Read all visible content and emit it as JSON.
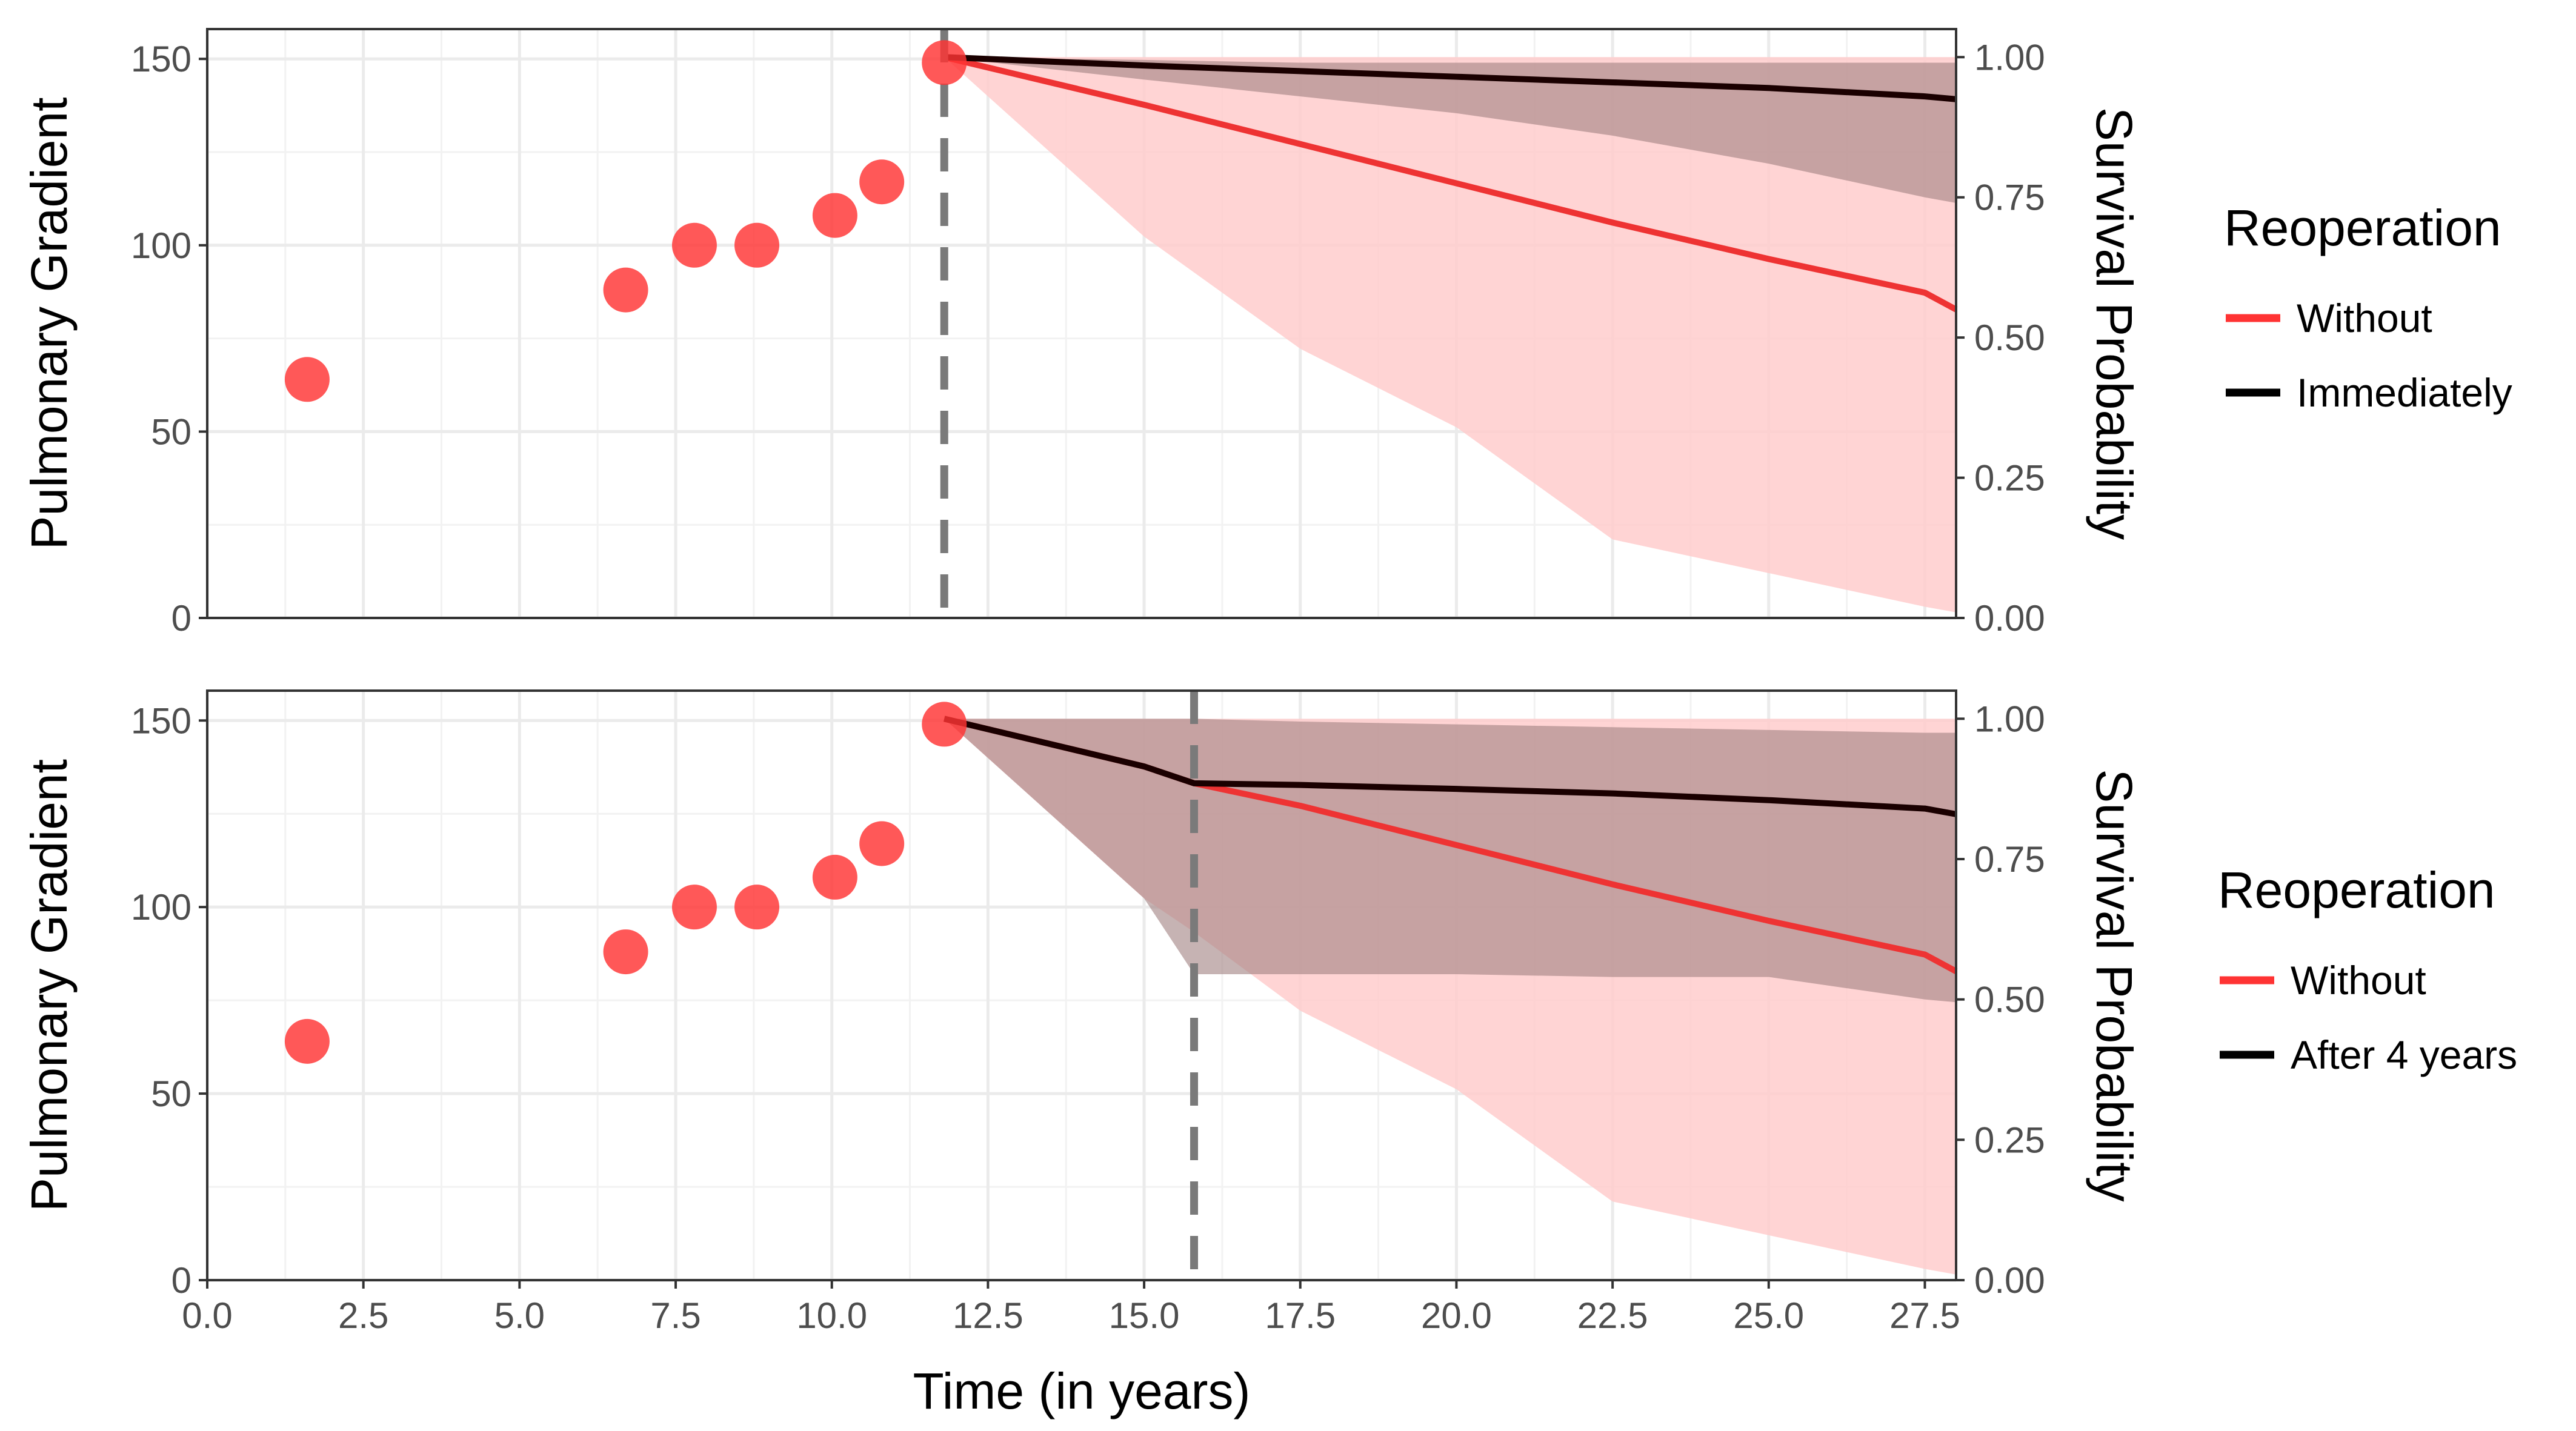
{
  "chart_data": [
    {
      "type": "line",
      "panel": "top",
      "xlim": [
        0,
        28
      ],
      "ylim_left": [
        0,
        158
      ],
      "ylim_right": [
        0,
        1.05
      ],
      "ylabel": "Pulmonary Gradient",
      "ylabel_right": "Survival Probability",
      "yticks_left": [
        "0",
        "50",
        "100",
        "150"
      ],
      "yticks_left_values": [
        0,
        50,
        100,
        150
      ],
      "yticks_right": [
        "0.00",
        "0.25",
        "0.50",
        "0.75",
        "1.00"
      ],
      "yticks_right_values": [
        0,
        0.25,
        0.5,
        0.75,
        1.0
      ],
      "vline_x": 11.8,
      "points": {
        "x": [
          1.6,
          6.7,
          7.8,
          8.8,
          10.05,
          10.8,
          11.8
        ],
        "y": [
          64,
          88,
          100,
          100,
          108,
          117,
          149
        ]
      },
      "series": [
        {
          "name": "Without",
          "color": "#ff3333",
          "x": [
            11.8,
            15,
            17.5,
            20,
            22.5,
            25,
            27.5,
            28
          ],
          "y": [
            1.0,
            0.915,
            0.845,
            0.775,
            0.705,
            0.64,
            0.58,
            0.55
          ],
          "band_lower": [
            1.0,
            0.68,
            0.48,
            0.34,
            0.14,
            0.08,
            0.02,
            0.01
          ],
          "band_upper": [
            1.0,
            1.0,
            1.0,
            1.0,
            1.0,
            1.0,
            1.0,
            1.0
          ],
          "band_color": "#ffcccc"
        },
        {
          "name": "Immediately",
          "color": "#000000",
          "x": [
            11.8,
            15,
            17.5,
            20,
            22.5,
            25,
            27.5,
            28
          ],
          "y": [
            1.0,
            0.985,
            0.975,
            0.965,
            0.955,
            0.945,
            0.93,
            0.925
          ],
          "band_lower": [
            1.0,
            0.96,
            0.93,
            0.9,
            0.86,
            0.81,
            0.75,
            0.74
          ],
          "band_upper": [
            1.0,
            0.995,
            0.99,
            0.99,
            0.99,
            0.99,
            0.99,
            0.99
          ],
          "band_color": "#a08080"
        }
      ],
      "legend": {
        "title": "Reoperation",
        "labels": [
          "Without",
          "Immediately"
        ],
        "colors": [
          "#ff3333",
          "#000000"
        ]
      }
    },
    {
      "type": "line",
      "panel": "bottom",
      "xlim": [
        0,
        28
      ],
      "ylim_left": [
        0,
        158
      ],
      "ylim_right": [
        0,
        1.05
      ],
      "xlabel": "Time (in years)",
      "ylabel": "Pulmonary Gradient",
      "ylabel_right": "Survival Probability",
      "xticks": [
        "0.0",
        "2.5",
        "5.0",
        "7.5",
        "10.0",
        "12.5",
        "15.0",
        "17.5",
        "20.0",
        "22.5",
        "25.0",
        "27.5"
      ],
      "xticks_values": [
        0,
        2.5,
        5,
        7.5,
        10,
        12.5,
        15,
        17.5,
        20,
        22.5,
        25,
        27.5
      ],
      "yticks_left": [
        "0",
        "50",
        "100",
        "150"
      ],
      "yticks_left_values": [
        0,
        50,
        100,
        150
      ],
      "yticks_right": [
        "0.00",
        "0.25",
        "0.50",
        "0.75",
        "1.00"
      ],
      "yticks_right_values": [
        0,
        0.25,
        0.5,
        0.75,
        1.0
      ],
      "vline_x": 15.8,
      "points": {
        "x": [
          1.6,
          6.7,
          7.8,
          8.8,
          10.05,
          10.8,
          11.8
        ],
        "y": [
          64,
          88,
          100,
          100,
          108,
          117,
          149
        ]
      },
      "series": [
        {
          "name": "Without",
          "color": "#ff3333",
          "x": [
            11.8,
            15,
            15.8,
            17.5,
            20,
            22.5,
            25,
            27.5,
            28
          ],
          "y": [
            1.0,
            0.915,
            0.885,
            0.845,
            0.775,
            0.705,
            0.64,
            0.58,
            0.55
          ],
          "band_lower": [
            1.0,
            0.68,
            0.62,
            0.48,
            0.34,
            0.14,
            0.08,
            0.02,
            0.01
          ],
          "band_upper": [
            1.0,
            1.0,
            1.0,
            1.0,
            1.0,
            1.0,
            1.0,
            1.0,
            1.0
          ],
          "band_color": "#ffcccc"
        },
        {
          "name": "After 4 years",
          "color": "#000000",
          "x": [
            11.8,
            15,
            15.8,
            17.5,
            20,
            22.5,
            25,
            27.5,
            28
          ],
          "y": [
            1.0,
            0.915,
            0.885,
            0.882,
            0.875,
            0.867,
            0.855,
            0.84,
            0.83
          ],
          "band_lower": [
            1.0,
            0.68,
            0.545,
            0.545,
            0.545,
            0.54,
            0.54,
            0.5,
            0.495
          ],
          "band_upper": [
            1.0,
            1.0,
            1.0,
            0.995,
            0.99,
            0.985,
            0.98,
            0.975,
            0.975
          ],
          "band_color": "#a08080"
        }
      ],
      "legend": {
        "title": "Reoperation",
        "labels": [
          "Without",
          "After 4 years"
        ],
        "colors": [
          "#ff3333",
          "#000000"
        ]
      }
    }
  ]
}
